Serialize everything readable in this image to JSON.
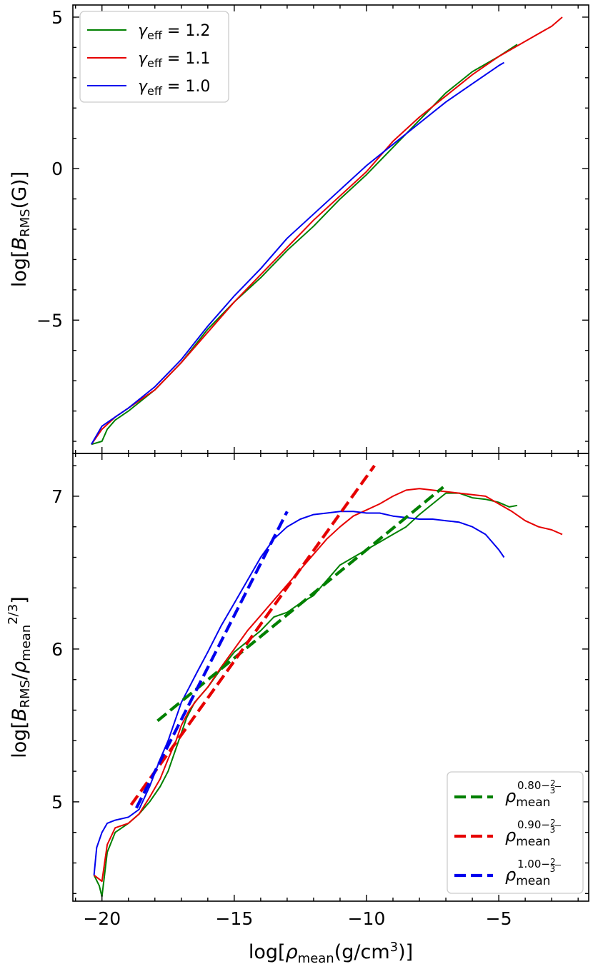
{
  "chart_data": [
    {
      "type": "line",
      "panel": "top",
      "ylabel": "log[B_RMS(G)]",
      "xlim": [
        -21.1,
        -1.6
      ],
      "ylim": [
        -9.4,
        5.4
      ],
      "y_ticks": [
        {
          "value": 5,
          "label": "5"
        },
        {
          "value": 0,
          "label": "0"
        },
        {
          "value": -5,
          "label": "−5"
        }
      ],
      "legend_position": "top-left",
      "grid": false,
      "series": [
        {
          "name": "γ_eff = 1.2",
          "legend_symbol": "γ",
          "legend_sub": "eff",
          "legend_value": " = 1.2",
          "color": "#008000",
          "x": [
            -20.4,
            -20.0,
            -19.8,
            -19.5,
            -19.0,
            -18.0,
            -17.0,
            -16.0,
            -15.0,
            -14.0,
            -13.0,
            -12.0,
            -11.0,
            -10.0,
            -9.0,
            -8.0,
            -7.0,
            -6.0,
            -5.0,
            -4.3
          ],
          "y": [
            -9.1,
            -9.0,
            -8.6,
            -8.3,
            -8.0,
            -7.3,
            -6.4,
            -5.3,
            -4.4,
            -3.6,
            -2.7,
            -1.9,
            -1.0,
            -0.2,
            0.7,
            1.6,
            2.5,
            3.2,
            3.7,
            4.1
          ]
        },
        {
          "name": "γ_eff = 1.1",
          "legend_symbol": "γ",
          "legend_sub": "eff",
          "legend_value": " = 1.1",
          "color": "#e60000",
          "x": [
            -20.4,
            -20.0,
            -19.5,
            -19.0,
            -18.0,
            -17.0,
            -16.0,
            -15.0,
            -14.0,
            -13.0,
            -12.0,
            -11.0,
            -10.0,
            -9.0,
            -8.0,
            -7.0,
            -6.0,
            -5.0,
            -4.0,
            -3.0,
            -2.6
          ],
          "y": [
            -9.1,
            -8.6,
            -8.2,
            -7.9,
            -7.3,
            -6.4,
            -5.4,
            -4.4,
            -3.5,
            -2.6,
            -1.7,
            -0.9,
            -0.1,
            0.9,
            1.7,
            2.4,
            3.1,
            3.7,
            4.2,
            4.7,
            5.0
          ]
        },
        {
          "name": "γ_eff = 1.0",
          "legend_symbol": "γ",
          "legend_sub": "eff",
          "legend_value": " = 1.0",
          "color": "#0000ee",
          "x": [
            -20.4,
            -20.2,
            -20.0,
            -19.5,
            -19.0,
            -18.0,
            -17.0,
            -16.0,
            -15.0,
            -14.0,
            -13.0,
            -12.0,
            -11.0,
            -10.0,
            -9.0,
            -8.0,
            -7.0,
            -6.0,
            -5.0,
            -4.8
          ],
          "y": [
            -9.1,
            -8.8,
            -8.5,
            -8.2,
            -7.9,
            -7.2,
            -6.3,
            -5.2,
            -4.2,
            -3.3,
            -2.3,
            -1.5,
            -0.7,
            0.1,
            0.8,
            1.5,
            2.2,
            2.8,
            3.4,
            3.5
          ]
        }
      ]
    },
    {
      "type": "line",
      "panel": "bottom",
      "xlabel": "log[ρ_mean(g/cm³)]",
      "ylabel": "log[B_RMS/ρ_mean^(2/3)]",
      "xlim": [
        -21.1,
        -1.6
      ],
      "ylim": [
        4.35,
        7.28
      ],
      "x_ticks": [
        {
          "value": -20,
          "label": "−20"
        },
        {
          "value": -15,
          "label": "−15"
        },
        {
          "value": -10,
          "label": "−10"
        },
        {
          "value": -5,
          "label": "−5"
        }
      ],
      "y_ticks": [
        {
          "value": 7,
          "label": "7"
        },
        {
          "value": 6,
          "label": "6"
        },
        {
          "value": 5,
          "label": "5"
        }
      ],
      "legend_position": "bottom-right",
      "grid": false,
      "series": [
        {
          "name": "γ_eff = 1.2",
          "color": "#008000",
          "style": "solid",
          "x": [
            -20.3,
            -20.1,
            -20.0,
            -19.8,
            -19.5,
            -19.0,
            -18.6,
            -18.2,
            -17.8,
            -17.5,
            -17.2,
            -17.0,
            -16.8,
            -16.5,
            -16.0,
            -15.5,
            -15.0,
            -14.5,
            -14.0,
            -13.5,
            -13.0,
            -12.5,
            -12.0,
            -11.5,
            -11.0,
            -10.5,
            -10.0,
            -9.5,
            -9.0,
            -8.5,
            -8.0,
            -7.5,
            -7.0,
            -6.5,
            -6.0,
            -5.5,
            -5.0,
            -4.6,
            -4.3
          ],
          "y": [
            4.52,
            4.45,
            4.38,
            4.67,
            4.8,
            4.86,
            4.92,
            5.0,
            5.1,
            5.2,
            5.35,
            5.45,
            5.55,
            5.65,
            5.75,
            5.87,
            5.98,
            6.05,
            6.12,
            6.21,
            6.24,
            6.3,
            6.35,
            6.45,
            6.55,
            6.6,
            6.65,
            6.7,
            6.75,
            6.8,
            6.88,
            6.95,
            7.02,
            7.02,
            6.99,
            6.98,
            6.96,
            6.93,
            6.94
          ]
        },
        {
          "name": "γ_eff = 1.1",
          "color": "#e60000",
          "style": "solid",
          "x": [
            -20.3,
            -20.0,
            -19.8,
            -19.5,
            -19.0,
            -18.6,
            -18.2,
            -17.8,
            -17.5,
            -17.2,
            -17.0,
            -16.7,
            -16.4,
            -16.0,
            -15.5,
            -15.0,
            -14.5,
            -14.0,
            -13.5,
            -13.0,
            -12.5,
            -12.0,
            -11.5,
            -11.0,
            -10.5,
            -10.0,
            -9.5,
            -9.0,
            -8.5,
            -8.0,
            -7.5,
            -7.0,
            -6.5,
            -6.0,
            -5.5,
            -5.0,
            -4.5,
            -4.0,
            -3.5,
            -3.0,
            -2.6
          ],
          "y": [
            4.52,
            4.48,
            4.72,
            4.83,
            4.86,
            4.92,
            5.03,
            5.15,
            5.28,
            5.4,
            5.5,
            5.6,
            5.67,
            5.75,
            5.88,
            6.0,
            6.12,
            6.22,
            6.32,
            6.42,
            6.52,
            6.62,
            6.72,
            6.8,
            6.87,
            6.91,
            6.95,
            7.0,
            7.04,
            7.05,
            7.04,
            7.03,
            7.02,
            7.01,
            7.0,
            6.95,
            6.9,
            6.84,
            6.8,
            6.78,
            6.75
          ]
        },
        {
          "name": "γ_eff = 1.0",
          "color": "#0000ee",
          "style": "solid",
          "x": [
            -20.3,
            -20.2,
            -20.0,
            -19.8,
            -19.5,
            -19.0,
            -18.6,
            -18.2,
            -17.8,
            -17.5,
            -17.2,
            -17.0,
            -16.7,
            -16.4,
            -16.0,
            -15.5,
            -15.0,
            -14.5,
            -14.0,
            -13.5,
            -13.0,
            -12.5,
            -12.0,
            -11.5,
            -11.0,
            -10.5,
            -10.0,
            -9.5,
            -9.0,
            -8.5,
            -8.0,
            -7.5,
            -7.0,
            -6.5,
            -6.0,
            -5.5,
            -5.0,
            -4.8
          ],
          "y": [
            4.52,
            4.7,
            4.8,
            4.86,
            4.88,
            4.9,
            4.95,
            5.1,
            5.28,
            5.4,
            5.55,
            5.65,
            5.75,
            5.85,
            5.98,
            6.15,
            6.3,
            6.45,
            6.6,
            6.72,
            6.8,
            6.85,
            6.88,
            6.89,
            6.9,
            6.9,
            6.89,
            6.89,
            6.87,
            6.86,
            6.85,
            6.85,
            6.84,
            6.83,
            6.8,
            6.75,
            6.65,
            6.6
          ]
        },
        {
          "name": "ρ_mean^(0.80−2/3)",
          "legend_exp": "0.80",
          "color": "#008000",
          "style": "dashed",
          "x": [
            -17.9,
            -7.1
          ],
          "y": [
            5.53,
            7.06
          ]
        },
        {
          "name": "ρ_mean^(0.90−2/3)",
          "legend_exp": "0.90",
          "color": "#e60000",
          "style": "dashed",
          "x": [
            -18.9,
            -9.7
          ],
          "y": [
            4.98,
            7.2
          ]
        },
        {
          "name": "ρ_mean^(1.00−2/3)",
          "legend_exp": "1.00",
          "color": "#0000ee",
          "style": "dashed",
          "x": [
            -18.7,
            -13.0
          ],
          "y": [
            4.96,
            6.9
          ]
        }
      ]
    }
  ]
}
